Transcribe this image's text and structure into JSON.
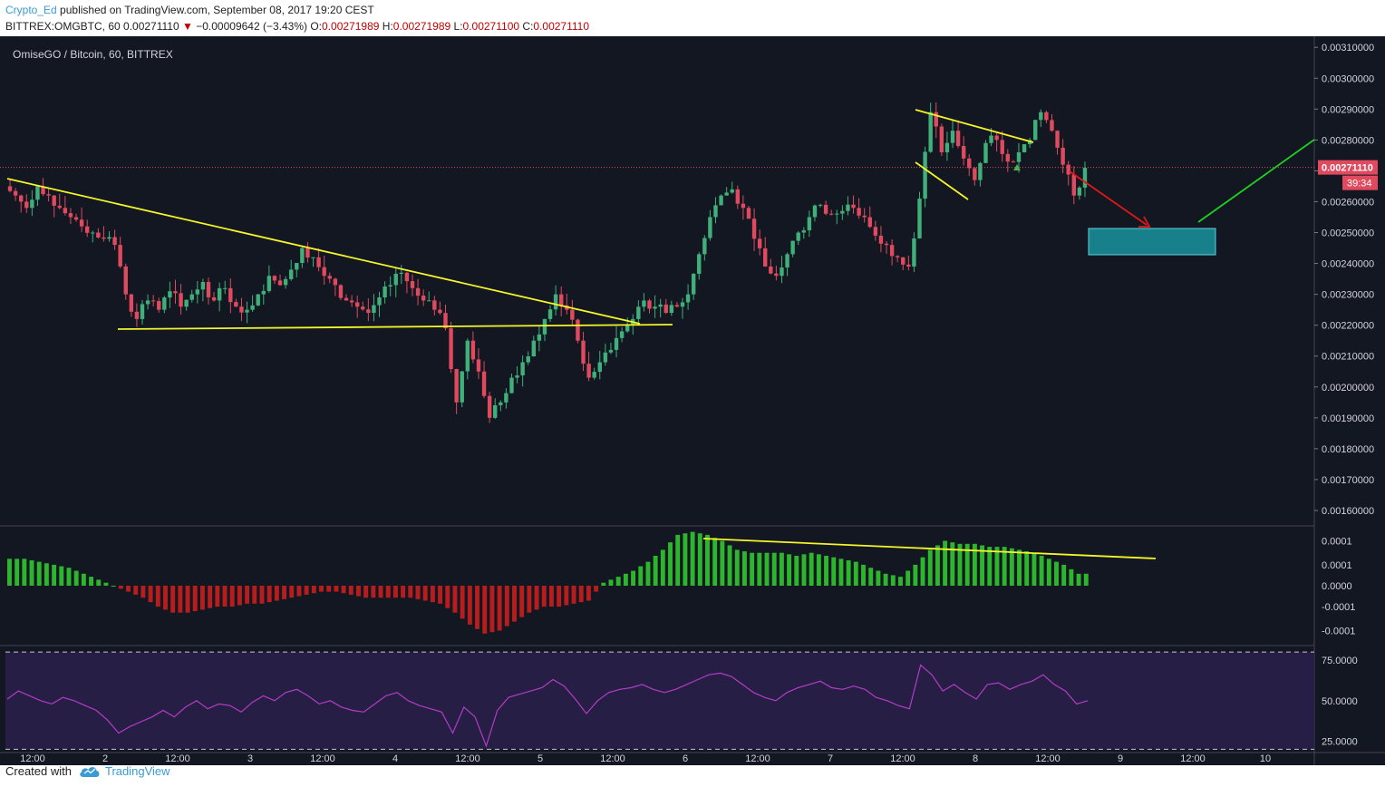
{
  "header": {
    "author": "Crypto_Ed",
    "published": "published on TradingView.com, September 08, 2017 19:20 CEST",
    "symbol": "BITTREX:OMGBTC, 60",
    "last": "0.00271110",
    "change_arrow": "▼",
    "change": "−0.00009642 (−3.43%)",
    "o_label": "O:",
    "o": "0.00271989",
    "h_label": "H:",
    "h": "0.00271989",
    "l_label": "L:",
    "l": "0.00271100",
    "c_label": "C:",
    "c": "0.00271110"
  },
  "footer": {
    "created_with": "Created with",
    "brand": "TradingView",
    "brand_icon": "cloud-logo-icon"
  },
  "colors": {
    "background": "#131722",
    "up": "#3fb07a",
    "down": "#e04a5f",
    "trendline": "#f5f52a",
    "osc_up": "#2db52d",
    "osc_down": "#b81d1d",
    "rsi_line": "#b33cc4",
    "rsi_band": "#2a1f4a",
    "target_box": "#17808a",
    "arrow_down": "#e01818",
    "arrow_up": "#1fd11f"
  },
  "chart_data": [
    {
      "type": "candlestick",
      "title": "OmiseGO / Bitcoin, 60, BITTREX",
      "y_axis_ticks": [
        "0.00310000",
        "0.00300000",
        "0.00290000",
        "0.00280000",
        "0.00270000",
        "0.00260000",
        "0.00250000",
        "0.00240000",
        "0.00230000",
        "0.00220000",
        "0.00210000",
        "0.00200000",
        "0.00190000",
        "0.00180000",
        "0.00170000",
        "0.00160000"
      ],
      "ylim": [
        0.00155,
        0.00313
      ],
      "x_axis_ticks": [
        "12:00",
        "2",
        "12:00",
        "3",
        "12:00",
        "4",
        "12:00",
        "5",
        "12:00",
        "6",
        "12:00",
        "7",
        "12:00",
        "8",
        "12:00",
        "9",
        "12:00",
        "10"
      ],
      "last_price_label": "0.00271110",
      "countdown_label": "39:34",
      "last_price": 0.0027111,
      "candles_approx_close": [
        0.00262,
        0.00258,
        0.00265,
        0.00262,
        0.00258,
        0.00255,
        0.00252,
        0.0025,
        0.00248,
        0.00246,
        0.0023,
        0.00222,
        0.00228,
        0.00225,
        0.00231,
        0.00226,
        0.0023,
        0.00234,
        0.00228,
        0.00232,
        0.00226,
        0.00225,
        0.0023,
        0.00236,
        0.00233,
        0.00238,
        0.00245,
        0.00242,
        0.00236,
        0.00233,
        0.00228,
        0.00226,
        0.00224,
        0.00229,
        0.00233,
        0.00237,
        0.00232,
        0.00228,
        0.00225,
        0.00219,
        0.00195,
        0.00215,
        0.00205,
        0.0019,
        0.00195,
        0.00203,
        0.00208,
        0.00215,
        0.00222,
        0.0023,
        0.00225,
        0.00215,
        0.00203,
        0.00208,
        0.00212,
        0.00218,
        0.00222,
        0.00228,
        0.00226,
        0.00224,
        0.00226,
        0.0023,
        0.00243,
        0.00255,
        0.00262,
        0.00264,
        0.00258,
        0.00248,
        0.00239,
        0.00236,
        0.00243,
        0.0025,
        0.00255,
        0.00259,
        0.00256,
        0.00257,
        0.00258,
        0.00255,
        0.00249,
        0.00246,
        0.00242,
        0.00239,
        0.00261,
        0.00289,
        0.00276,
        0.00283,
        0.00274,
        0.00267,
        0.00279,
        0.0028,
        0.00273,
        0.00276,
        0.0028,
        0.00289,
        0.00283,
        0.00272,
        0.00262,
        0.00271
      ],
      "annotations": [
        "descending trendline",
        "support line at 0.00219",
        "falling wedge",
        "target zone 0.00243–0.00252"
      ]
    },
    {
      "type": "bar",
      "title": "",
      "y_axis_ticks": [
        "0.0001",
        "0.0001",
        "0.0000",
        "-0.0001",
        "-0.0001"
      ],
      "ylim": [
        -0.0002,
        0.0002
      ],
      "values_approx": [
        9e-05,
        9e-05,
        8e-05,
        7e-05,
        6e-05,
        4e-05,
        2e-05,
        0.0,
        -2e-05,
        -4e-05,
        -7e-05,
        -9e-05,
        -9e-05,
        -8e-05,
        -7e-05,
        -7e-05,
        -6e-05,
        -6e-05,
        -5e-05,
        -4e-05,
        -3e-05,
        -2e-05,
        -2e-05,
        -3e-05,
        -4e-05,
        -4e-05,
        -4e-05,
        -4e-05,
        -5e-05,
        -6e-05,
        -9e-05,
        -0.00013,
        -0.00016,
        -0.00015,
        -0.00012,
        -9e-05,
        -7e-05,
        -7e-05,
        -6e-05,
        -5e-05,
        1e-05,
        3e-05,
        5e-05,
        8e-05,
        0.00012,
        0.00017,
        0.00018,
        0.00017,
        0.00015,
        0.00012,
        0.00011,
        0.00011,
        0.00011,
        0.0001,
        0.00011,
        0.0001,
        9e-05,
        8e-05,
        6e-05,
        4e-05,
        3e-05,
        7e-05,
        0.00012,
        0.00015,
        0.00014,
        0.00014,
        0.00013,
        0.00013,
        0.00012,
        0.00011,
        9e-05,
        7e-05,
        4e-05
      ]
    },
    {
      "type": "line",
      "title": "",
      "y_axis_ticks": [
        "75.0000",
        "50.0000",
        "25.0000"
      ],
      "ylim": [
        18,
        84
      ],
      "bands": [
        80,
        20
      ],
      "values_approx": [
        51,
        56,
        53,
        50,
        48,
        52,
        50,
        47,
        44,
        38,
        30,
        34,
        37,
        40,
        44,
        40,
        46,
        50,
        45,
        48,
        47,
        43,
        49,
        53,
        50,
        55,
        57,
        53,
        48,
        50,
        46,
        44,
        43,
        48,
        53,
        55,
        50,
        47,
        45,
        43,
        30,
        46,
        40,
        22,
        44,
        52,
        54,
        56,
        58,
        63,
        59,
        51,
        42,
        50,
        55,
        57,
        58,
        60,
        57,
        55,
        57,
        60,
        63,
        66,
        67,
        65,
        60,
        55,
        52,
        50,
        55,
        58,
        60,
        62,
        58,
        57,
        59,
        57,
        52,
        50,
        47,
        45,
        72,
        66,
        56,
        60,
        55,
        51,
        60,
        61,
        57,
        60,
        62,
        66,
        60,
        56,
        48,
        50
      ]
    }
  ]
}
